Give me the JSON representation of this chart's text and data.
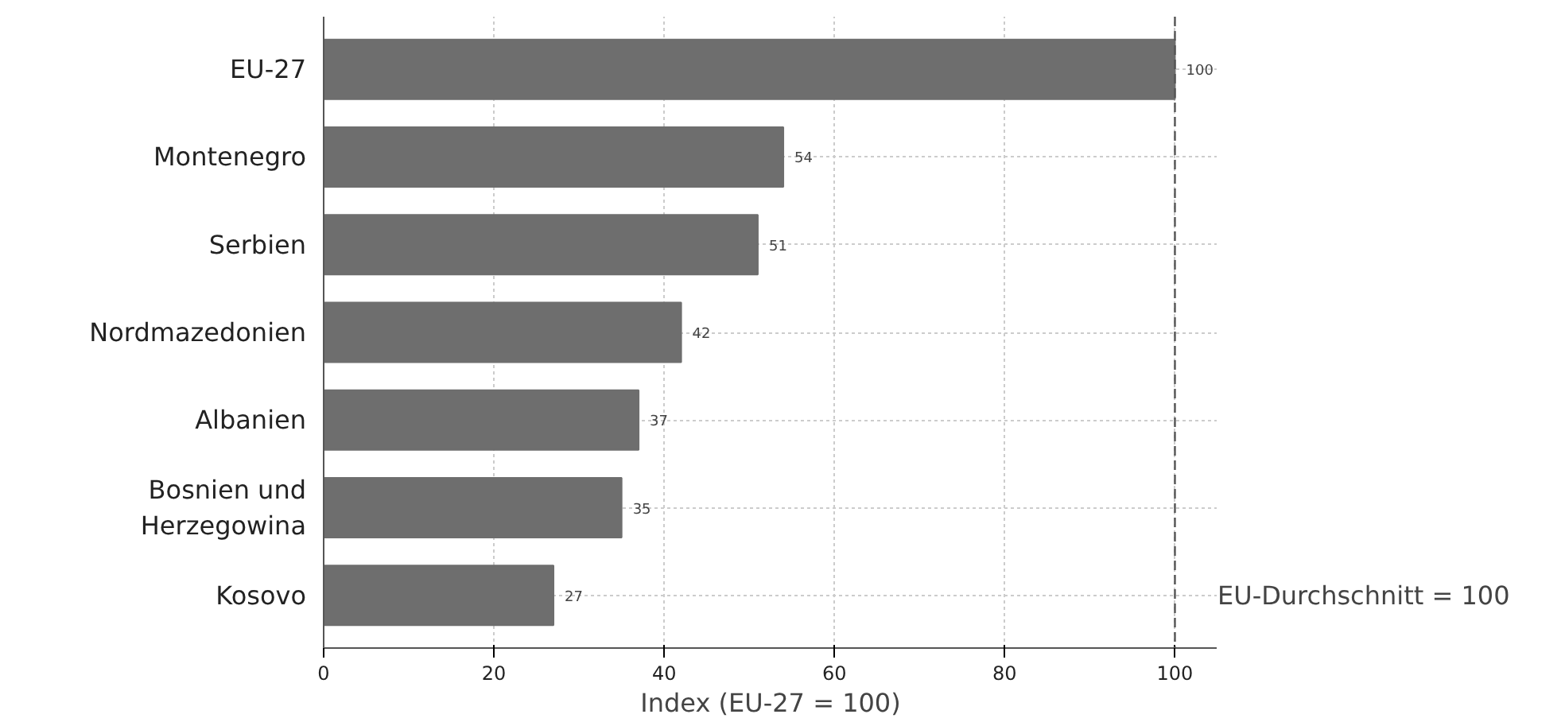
{
  "chart_data": {
    "type": "bar",
    "orientation": "horizontal",
    "xlabel": "Index (EU-27 = 100)",
    "categories": [
      "EU-27",
      "Montenegro",
      "Serbien",
      "Nordmazedonien",
      "Albanien",
      "Bosnien und\nHerzegowina",
      "Kosovo"
    ],
    "values": [
      100,
      54,
      51,
      42,
      37,
      35,
      27
    ],
    "color": "#6e6e6e",
    "data_labels": true,
    "xlim": [
      0,
      105
    ],
    "xticks": [
      0,
      20,
      40,
      60,
      80,
      100
    ],
    "grid": true,
    "ref_lines": [
      {
        "axis": "x",
        "value": 100,
        "label": "EU-Durchschnitt = 100",
        "color": "#555555",
        "line_style": "dashed"
      }
    ]
  }
}
